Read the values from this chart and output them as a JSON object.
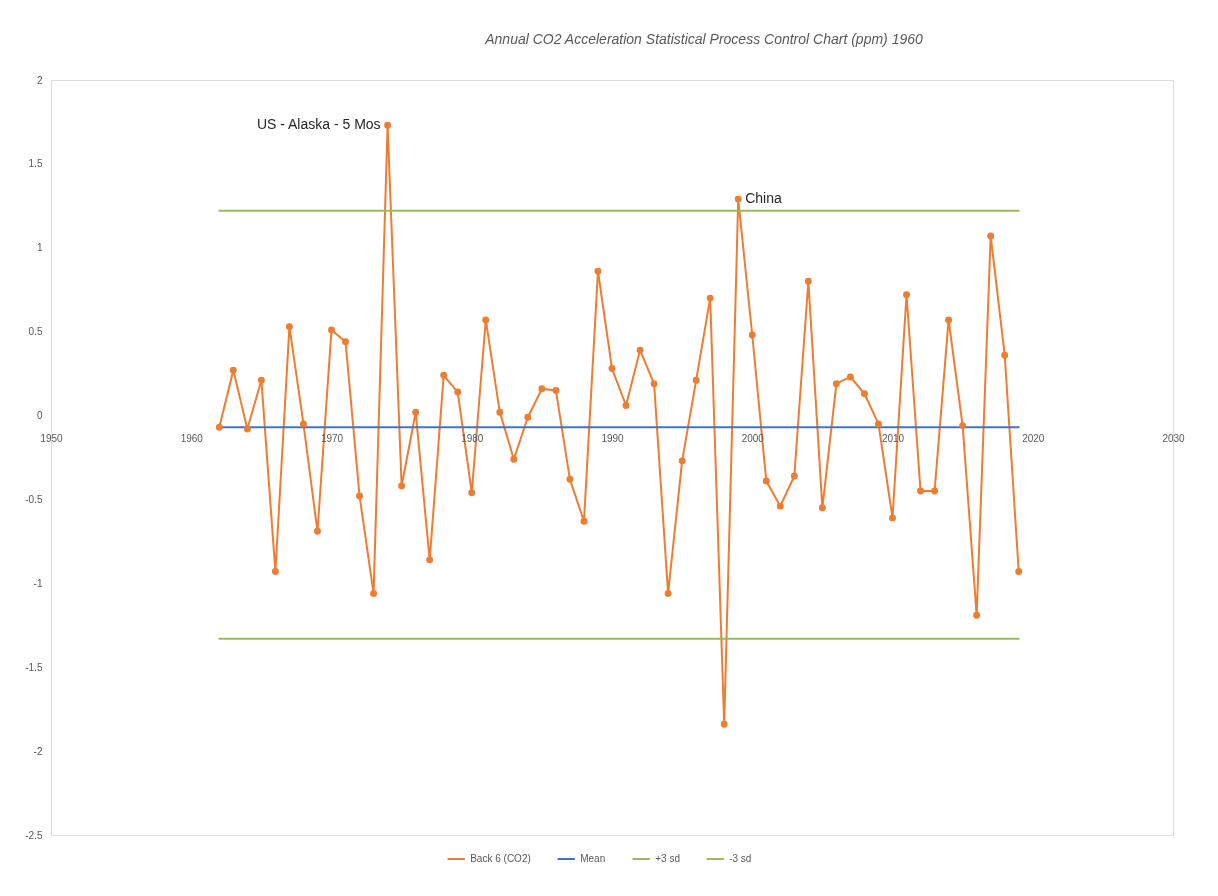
{
  "chart_data": {
    "type": "line",
    "title": "Annual CO2 Acceleration Statistical Process Control Chart (ppm) 1960",
    "x": [
      1962,
      1963,
      1964,
      1965,
      1966,
      1967,
      1968,
      1969,
      1970,
      1971,
      1972,
      1973,
      1974,
      1975,
      1976,
      1977,
      1978,
      1979,
      1980,
      1981,
      1982,
      1983,
      1984,
      1985,
      1986,
      1987,
      1988,
      1989,
      1990,
      1991,
      1992,
      1993,
      1994,
      1995,
      1996,
      1997,
      1998,
      1999,
      2000,
      2001,
      2002,
      2003,
      2004,
      2005,
      2006,
      2007,
      2008,
      2009,
      2010,
      2011,
      2012,
      2013,
      2014,
      2015,
      2016,
      2017,
      2018,
      2019
    ],
    "xlim": [
      1950,
      2030
    ],
    "xticks": [
      1950,
      1960,
      1970,
      1980,
      1990,
      2000,
      2010,
      2020,
      2030
    ],
    "ylim": [
      -2.5,
      2
    ],
    "yticks": [
      2,
      1.5,
      1,
      0.5,
      0,
      -0.5,
      -1,
      -1.5,
      -2,
      -2.5
    ],
    "series": [
      {
        "name": "Back 6 (CO2)",
        "color": "#ed7d31",
        "marker": "circle",
        "values": [
          -0.07,
          0.27,
          -0.08,
          0.21,
          -0.93,
          0.53,
          -0.05,
          -0.69,
          0.51,
          0.44,
          -0.48,
          -1.06,
          1.73,
          -0.42,
          0.02,
          -0.86,
          0.24,
          0.14,
          -0.46,
          0.57,
          0.02,
          -0.26,
          -0.01,
          0.16,
          0.15,
          -0.38,
          -0.63,
          0.86,
          0.28,
          0.06,
          0.39,
          0.19,
          -1.06,
          -0.27,
          0.21,
          0.7,
          -1.84,
          1.29,
          0.48,
          -0.39,
          -0.54,
          -0.36,
          0.8,
          -0.55,
          0.19,
          0.23,
          0.13,
          -0.05,
          -0.61,
          0.72,
          -0.45,
          -0.45,
          0.57,
          -0.06,
          -1.19,
          1.07,
          0.36,
          -0.93
        ]
      },
      {
        "name": "Mean",
        "color": "#4472c4",
        "values": [
          -0.07,
          -0.07,
          -0.07,
          -0.07,
          -0.07,
          -0.07,
          -0.07,
          -0.07,
          -0.07,
          -0.07,
          -0.07,
          -0.07,
          -0.07,
          -0.07,
          -0.07,
          -0.07,
          -0.07,
          -0.07,
          -0.07,
          -0.07,
          -0.07,
          -0.07,
          -0.07,
          -0.07,
          -0.07,
          -0.07,
          -0.07,
          -0.07,
          -0.07,
          -0.07,
          -0.07,
          -0.07,
          -0.07,
          -0.07,
          -0.07,
          -0.07,
          -0.07,
          -0.07,
          -0.07,
          -0.07,
          -0.07,
          -0.07,
          -0.07,
          -0.07,
          -0.07,
          -0.07,
          -0.07,
          -0.07,
          -0.07,
          -0.07,
          -0.07,
          -0.07,
          -0.07,
          -0.07,
          -0.07,
          -0.07,
          -0.07,
          -0.07
        ]
      },
      {
        "name": "+3 sd",
        "color": "#9bbb59",
        "values": [
          1.22,
          1.22,
          1.22,
          1.22,
          1.22,
          1.22,
          1.22,
          1.22,
          1.22,
          1.22,
          1.22,
          1.22,
          1.22,
          1.22,
          1.22,
          1.22,
          1.22,
          1.22,
          1.22,
          1.22,
          1.22,
          1.22,
          1.22,
          1.22,
          1.22,
          1.22,
          1.22,
          1.22,
          1.22,
          1.22,
          1.22,
          1.22,
          1.22,
          1.22,
          1.22,
          1.22,
          1.22,
          1.22,
          1.22,
          1.22,
          1.22,
          1.22,
          1.22,
          1.22,
          1.22,
          1.22,
          1.22,
          1.22,
          1.22,
          1.22,
          1.22,
          1.22,
          1.22,
          1.22,
          1.22,
          1.22,
          1.22,
          1.22
        ]
      },
      {
        "name": "-3 sd",
        "color": "#9bbb59",
        "values": [
          -1.33,
          -1.33,
          -1.33,
          -1.33,
          -1.33,
          -1.33,
          -1.33,
          -1.33,
          -1.33,
          -1.33,
          -1.33,
          -1.33,
          -1.33,
          -1.33,
          -1.33,
          -1.33,
          -1.33,
          -1.33,
          -1.33,
          -1.33,
          -1.33,
          -1.33,
          -1.33,
          -1.33,
          -1.33,
          -1.33,
          -1.33,
          -1.33,
          -1.33,
          -1.33,
          -1.33,
          -1.33,
          -1.33,
          -1.33,
          -1.33,
          -1.33,
          -1.33,
          -1.33,
          -1.33,
          -1.33,
          -1.33,
          -1.33,
          -1.33,
          -1.33,
          -1.33,
          -1.33,
          -1.33,
          -1.33,
          -1.33,
          -1.33,
          -1.33,
          -1.33,
          -1.33,
          -1.33,
          -1.33,
          -1.33,
          -1.33,
          -1.33
        ]
      }
    ],
    "annotations": [
      {
        "text": "US - Alaska - 5 Mos",
        "x": 1974,
        "y": 1.73
      },
      {
        "text": "China",
        "x": 1999,
        "y": 1.29
      }
    ],
    "line_style": "solid",
    "legend": "bottom",
    "grid": false
  }
}
